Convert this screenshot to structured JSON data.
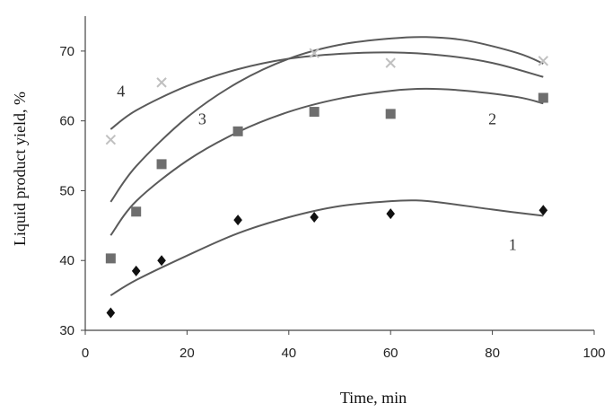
{
  "chart_data": {
    "type": "scatter",
    "xlabel": "Time, min",
    "ylabel": "Liquid product yield, %",
    "xlim": [
      0,
      100
    ],
    "ylim": [
      30,
      75
    ],
    "xticks": [
      "0",
      "20",
      "40",
      "60",
      "80",
      "100"
    ],
    "yticks": [
      "30",
      "40",
      "50",
      "60",
      "70"
    ],
    "grid": false,
    "legend": "none",
    "series": [
      {
        "label": "1",
        "marker": "diamond",
        "color": "#111111",
        "points": [
          [
            5,
            32.5
          ],
          [
            10,
            38.5
          ],
          [
            15,
            40
          ],
          [
            30,
            45.8
          ],
          [
            45,
            46.2
          ],
          [
            60,
            46.7
          ],
          [
            90,
            47.2
          ]
        ],
        "trend": [
          [
            5,
            35
          ],
          [
            10,
            37.2
          ],
          [
            20,
            40.7
          ],
          [
            30,
            43.9
          ],
          [
            40,
            46.2
          ],
          [
            50,
            47.8
          ],
          [
            60,
            48.5
          ],
          [
            65,
            48.6
          ],
          [
            70,
            48.3
          ],
          [
            80,
            47.3
          ],
          [
            90,
            46.4
          ]
        ]
      },
      {
        "label": "2",
        "marker": "square",
        "color": "#6e6e6e",
        "points": [
          [
            5,
            40.3
          ],
          [
            10,
            47
          ],
          [
            15,
            53.8
          ],
          [
            30,
            58.5
          ],
          [
            45,
            61.3
          ],
          [
            60,
            61
          ],
          [
            90,
            63.3
          ]
        ],
        "trend": [
          [
            5,
            43.6
          ],
          [
            10,
            48.5
          ],
          [
            20,
            54.3
          ],
          [
            30,
            58.4
          ],
          [
            40,
            61.3
          ],
          [
            50,
            63.2
          ],
          [
            60,
            64.3
          ],
          [
            67,
            64.6
          ],
          [
            75,
            64.3
          ],
          [
            85,
            63.4
          ],
          [
            90,
            62.5
          ]
        ]
      },
      {
        "label": "3",
        "marker": "none",
        "color": "#6e6e6e",
        "points": [],
        "trend": [
          [
            5,
            48.4
          ],
          [
            10,
            53.5
          ],
          [
            20,
            60.5
          ],
          [
            30,
            65.5
          ],
          [
            40,
            68.9
          ],
          [
            50,
            70.9
          ],
          [
            60,
            71.8
          ],
          [
            67,
            72
          ],
          [
            75,
            71.5
          ],
          [
            85,
            69.7
          ],
          [
            90,
            68.2
          ]
        ]
      },
      {
        "label": "4",
        "marker": "cross",
        "color": "#c0c0c0",
        "points": [
          [
            5,
            57.3
          ],
          [
            15,
            65.5
          ],
          [
            45,
            69.7
          ],
          [
            60,
            68.3
          ],
          [
            90,
            68.6
          ]
        ],
        "trend": [
          [
            5,
            58.8
          ],
          [
            10,
            61.5
          ],
          [
            20,
            65
          ],
          [
            30,
            67.4
          ],
          [
            40,
            68.9
          ],
          [
            50,
            69.6
          ],
          [
            60,
            69.8
          ],
          [
            70,
            69.4
          ],
          [
            80,
            68.3
          ],
          [
            90,
            66.3
          ]
        ]
      }
    ],
    "curve_labels": [
      {
        "text": "1",
        "x": 84,
        "y": 41.5
      },
      {
        "text": "2",
        "x": 80,
        "y": 59.5
      },
      {
        "text": "3",
        "x": 23,
        "y": 59.5
      },
      {
        "text": "4",
        "x": 7,
        "y": 63.5
      }
    ]
  }
}
